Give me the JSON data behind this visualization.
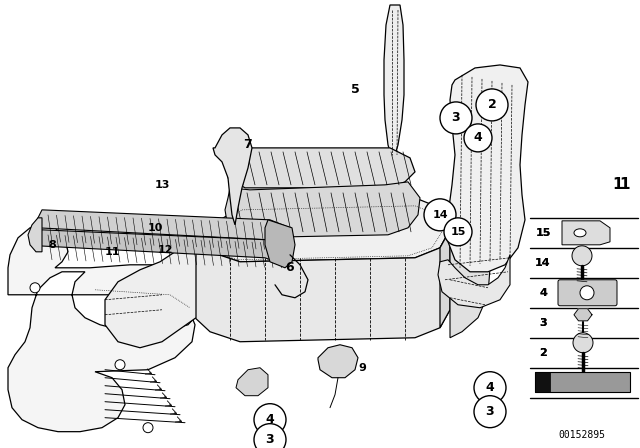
{
  "bg_color": "#ffffff",
  "line_color": "#000000",
  "catalog_number": "00152895",
  "fig_width": 6.4,
  "fig_height": 4.48,
  "dpi": 100
}
